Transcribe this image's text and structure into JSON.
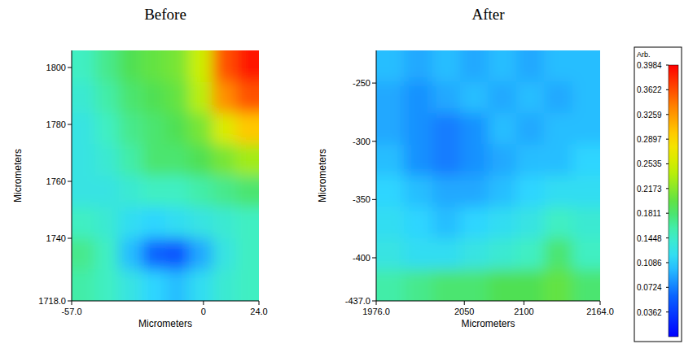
{
  "chart_data": [
    {
      "type": "heatmap",
      "title": "Before",
      "xlabel": "Micrometers",
      "ylabel": "Micrometers",
      "xlim": [
        -57,
        24
      ],
      "ylim": [
        1718,
        1806
      ],
      "xticks": [
        {
          "value": -57,
          "label": "-57.0"
        },
        0,
        {
          "value": 24,
          "label": "24.0"
        }
      ],
      "yticks": [
        {
          "value": 1718,
          "label": "1718.0"
        },
        1740,
        1760,
        1780,
        1800
      ],
      "cells": [
        [
          0.15,
          0.17,
          0.19,
          0.2,
          0.21,
          0.25,
          0.36,
          0.39
        ],
        [
          0.14,
          0.16,
          0.18,
          0.19,
          0.2,
          0.24,
          0.33,
          0.36
        ],
        [
          0.13,
          0.15,
          0.17,
          0.18,
          0.19,
          0.21,
          0.26,
          0.3
        ],
        [
          0.13,
          0.14,
          0.16,
          0.18,
          0.18,
          0.19,
          0.21,
          0.23
        ],
        [
          0.13,
          0.13,
          0.14,
          0.15,
          0.15,
          0.16,
          0.17,
          0.18
        ],
        [
          0.15,
          0.14,
          0.12,
          0.11,
          0.12,
          0.13,
          0.14,
          0.15
        ],
        [
          0.17,
          0.15,
          0.1,
          0.06,
          0.05,
          0.09,
          0.13,
          0.15
        ],
        [
          0.16,
          0.15,
          0.13,
          0.11,
          0.1,
          0.12,
          0.14,
          0.15
        ]
      ]
    },
    {
      "type": "heatmap",
      "title": "After",
      "xlabel": "Micrometers",
      "ylabel": "Micrometers",
      "xlim": [
        1976,
        2164
      ],
      "ylim": [
        -437,
        -222
      ],
      "xticks": [
        {
          "value": 1976,
          "label": "1976.0"
        },
        2050,
        2100,
        {
          "value": 2164,
          "label": "2164.0"
        }
      ],
      "yticks": [
        {
          "value": -437,
          "label": "-437.0"
        },
        -400,
        -350,
        -300,
        -250
      ],
      "cells": [
        [
          0.1,
          0.09,
          0.1,
          0.09,
          0.1,
          0.09,
          0.1,
          0.1
        ],
        [
          0.09,
          0.08,
          0.09,
          0.1,
          0.09,
          0.1,
          0.09,
          0.1
        ],
        [
          0.09,
          0.08,
          0.07,
          0.08,
          0.1,
          0.09,
          0.1,
          0.1
        ],
        [
          0.1,
          0.08,
          0.07,
          0.08,
          0.09,
          0.1,
          0.1,
          0.11
        ],
        [
          0.11,
          0.1,
          0.09,
          0.09,
          0.1,
          0.11,
          0.12,
          0.12
        ],
        [
          0.12,
          0.11,
          0.1,
          0.11,
          0.12,
          0.13,
          0.15,
          0.14
        ],
        [
          0.13,
          0.12,
          0.12,
          0.13,
          0.14,
          0.15,
          0.18,
          0.15
        ],
        [
          0.16,
          0.17,
          0.18,
          0.18,
          0.19,
          0.19,
          0.2,
          0.18
        ]
      ],
      "colorbar": {
        "label": "Arb.",
        "range": [
          0,
          0.3984
        ],
        "ticks": [
          0.3984,
          0.3622,
          0.3259,
          0.2897,
          0.2535,
          0.2173,
          0.1811,
          0.1448,
          0.1086,
          0.0724,
          0.0362
        ]
      }
    }
  ]
}
